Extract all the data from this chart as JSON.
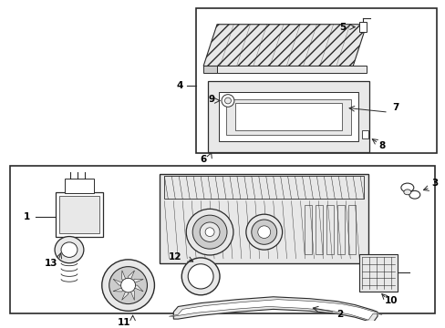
{
  "bg": "#ffffff",
  "lc": "#2a2a2a",
  "gray1": "#cccccc",
  "gray2": "#e8e8e8",
  "gray3": "#aaaaaa"
}
